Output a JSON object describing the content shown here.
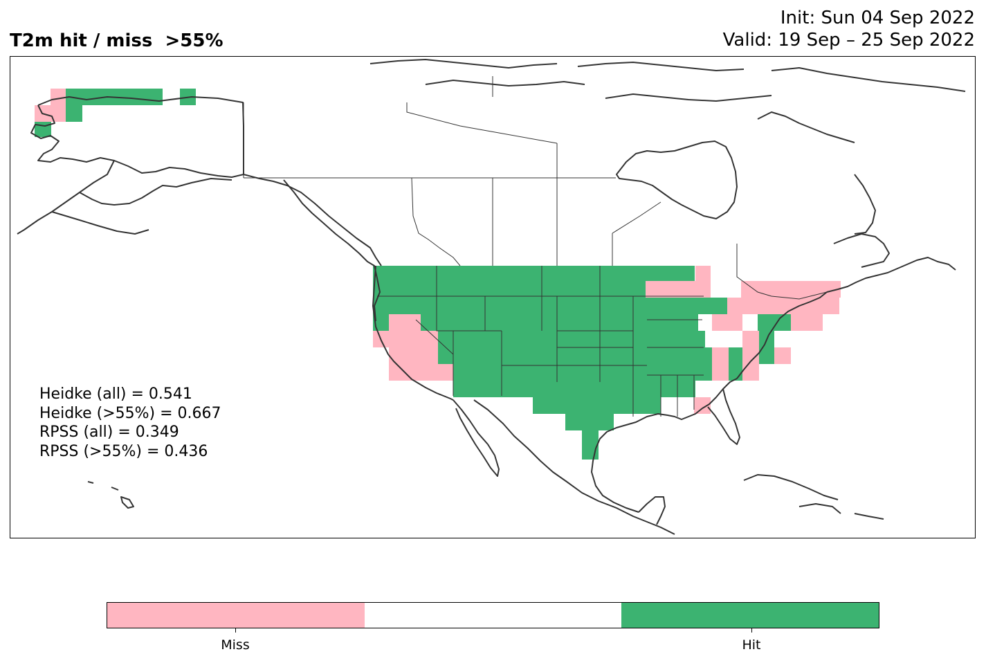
{
  "title": {
    "left": "T2m hit / miss  >55%",
    "init": "Init: Sun 04 Sep 2022",
    "valid": "Valid: 19 Sep – 25 Sep 2022"
  },
  "stats": {
    "heidke_all": "Heidke (all) = 0.541",
    "heidke_55": "Heidke (>55%) = 0.667",
    "rpss_all": "RPSS (all) = 0.349",
    "rpss_55": "RPSS (>55%) = 0.436"
  },
  "legend": {
    "categories": [
      "Miss",
      "",
      "Hit"
    ],
    "colors": [
      "#ffb6c1",
      "#ffffff",
      "#3cb371"
    ],
    "miss_label": "Miss",
    "hit_label": "Hit"
  },
  "colors": {
    "miss": "#ffb6c1",
    "hit": "#3cb371",
    "coastline": "#333333"
  }
}
